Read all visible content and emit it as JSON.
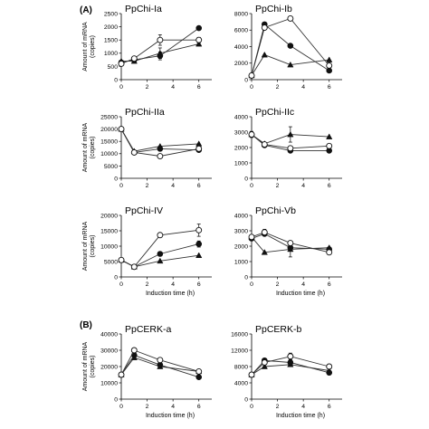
{
  "figure": {
    "sections": [
      {
        "label": "(A)"
      },
      {
        "label": "(B)"
      }
    ],
    "ylabel_line1": "Amount of mRNA",
    "ylabel_line2": "(copies)",
    "xlabel": "Induction time (h)"
  },
  "chart_data": [
    {
      "type": "line",
      "title": "PpChi-Ia",
      "x": [
        0,
        1,
        3,
        6
      ],
      "xlim": [
        0,
        7
      ],
      "xticks": [
        0,
        2,
        4,
        6
      ],
      "ylim": [
        0,
        2500
      ],
      "yticks": [
        0,
        500,
        1000,
        1500,
        2000,
        2500
      ],
      "series": [
        {
          "marker": "open-circle",
          "values": [
            600,
            800,
            1500,
            1500
          ],
          "error": [
            0,
            80,
            200,
            100
          ]
        },
        {
          "marker": "filled-circle",
          "values": [
            650,
            750,
            900,
            1950
          ],
          "error": [
            0,
            50,
            150,
            0
          ]
        },
        {
          "marker": "filled-triangle",
          "values": [
            700,
            700,
            1000,
            1350
          ],
          "error": [
            0,
            0,
            200,
            0
          ]
        }
      ]
    },
    {
      "type": "line",
      "title": "PpChi-Ib",
      "x": [
        0,
        1,
        3,
        6
      ],
      "xlim": [
        0,
        7
      ],
      "xticks": [
        0,
        2,
        4,
        6
      ],
      "ylim": [
        0,
        8000
      ],
      "yticks": [
        0,
        2000,
        4000,
        6000,
        8000
      ],
      "series": [
        {
          "marker": "open-circle",
          "values": [
            500,
            6300,
            7400,
            1700
          ],
          "error": [
            0,
            0,
            0,
            0
          ]
        },
        {
          "marker": "filled-circle",
          "values": [
            500,
            6700,
            4100,
            1100
          ],
          "error": [
            0,
            0,
            0,
            0
          ]
        },
        {
          "marker": "filled-triangle",
          "values": [
            500,
            3000,
            1800,
            2400
          ],
          "error": [
            0,
            0,
            0,
            0
          ]
        }
      ]
    },
    {
      "type": "line",
      "title": "PpChi-IIa",
      "x": [
        0,
        1,
        3,
        6
      ],
      "xlim": [
        0,
        7
      ],
      "xticks": [
        0,
        2,
        4,
        6
      ],
      "ylim": [
        0,
        25000
      ],
      "yticks": [
        0,
        5000,
        10000,
        15000,
        20000,
        25000
      ],
      "series": [
        {
          "marker": "open-circle",
          "values": [
            20000,
            10500,
            9000,
            12000
          ],
          "error": [
            0,
            0,
            0,
            0
          ]
        },
        {
          "marker": "filled-circle",
          "values": [
            20000,
            10500,
            12000,
            11500
          ],
          "error": [
            0,
            0,
            0,
            0
          ]
        },
        {
          "marker": "filled-triangle",
          "values": [
            20000,
            11000,
            13000,
            14000
          ],
          "error": [
            0,
            0,
            0,
            0
          ]
        }
      ]
    },
    {
      "type": "line",
      "title": "PpChi-IIc",
      "x": [
        0,
        1,
        3,
        6
      ],
      "xlim": [
        0,
        7
      ],
      "xticks": [
        0,
        2,
        4,
        6
      ],
      "ylim": [
        0,
        4000
      ],
      "yticks": [
        0,
        1000,
        2000,
        3000,
        4000
      ],
      "series": [
        {
          "marker": "open-circle",
          "values": [
            2850,
            2200,
            1950,
            2100
          ],
          "error": [
            200,
            0,
            0,
            0
          ]
        },
        {
          "marker": "filled-circle",
          "values": [
            2850,
            2150,
            1800,
            1800
          ],
          "error": [
            0,
            0,
            0,
            0
          ]
        },
        {
          "marker": "filled-triangle",
          "values": [
            2850,
            2250,
            2850,
            2700
          ],
          "error": [
            0,
            0,
            500,
            0
          ]
        }
      ]
    },
    {
      "type": "line",
      "title": "PpChi-IV",
      "x": [
        0,
        1,
        3,
        6
      ],
      "xlim": [
        0,
        7
      ],
      "xticks": [
        0,
        2,
        4,
        6
      ],
      "ylim": [
        0,
        20000
      ],
      "yticks": [
        0,
        5000,
        10000,
        15000,
        20000
      ],
      "series": [
        {
          "marker": "open-circle",
          "values": [
            5500,
            3300,
            13600,
            15200
          ],
          "error": [
            0,
            0,
            500,
            2000
          ]
        },
        {
          "marker": "filled-circle",
          "values": [
            5500,
            3300,
            7500,
            10700
          ],
          "error": [
            0,
            0,
            0,
            1000
          ]
        },
        {
          "marker": "filled-triangle",
          "values": [
            5500,
            3300,
            5200,
            7000
          ],
          "error": [
            0,
            0,
            0,
            0
          ]
        }
      ]
    },
    {
      "type": "line",
      "title": "PpChi-Vb",
      "x": [
        0,
        1,
        3,
        6
      ],
      "xlim": [
        0,
        7
      ],
      "xticks": [
        0,
        2,
        4,
        6
      ],
      "ylim": [
        0,
        4000
      ],
      "yticks": [
        0,
        1000,
        2000,
        3000,
        4000
      ],
      "series": [
        {
          "marker": "open-circle",
          "values": [
            2600,
            2900,
            2200,
            1600
          ],
          "error": [
            0,
            200,
            0,
            0
          ]
        },
        {
          "marker": "filled-circle",
          "values": [
            2500,
            2800,
            1900,
            1800
          ],
          "error": [
            0,
            0,
            0,
            0
          ]
        },
        {
          "marker": "filled-triangle",
          "values": [
            2600,
            1600,
            1800,
            1900
          ],
          "error": [
            0,
            0,
            500,
            0
          ]
        }
      ]
    },
    {
      "type": "line",
      "title": "PpCERK-a",
      "x": [
        0,
        1,
        3,
        6
      ],
      "xlim": [
        0,
        7
      ],
      "xticks": [
        0,
        2,
        4,
        6
      ],
      "ylim": [
        0,
        40000
      ],
      "yticks": [
        0,
        10000,
        20000,
        30000,
        40000
      ],
      "series": [
        {
          "marker": "open-circle",
          "values": [
            15000,
            30000,
            24000,
            17000
          ],
          "error": [
            0,
            0,
            0,
            0
          ]
        },
        {
          "marker": "filled-circle",
          "values": [
            15000,
            27000,
            21000,
            13500
          ],
          "error": [
            0,
            0,
            0,
            0
          ]
        },
        {
          "marker": "filled-triangle",
          "values": [
            15000,
            25500,
            20000,
            17000
          ],
          "error": [
            0,
            0,
            0,
            0
          ]
        }
      ]
    },
    {
      "type": "line",
      "title": "PpCERK-b",
      "x": [
        0,
        1,
        3,
        6
      ],
      "xlim": [
        0,
        7
      ],
      "xticks": [
        0,
        2,
        4,
        6
      ],
      "ylim": [
        0,
        16000
      ],
      "yticks": [
        0,
        4000,
        8000,
        12000,
        16000
      ],
      "series": [
        {
          "marker": "open-circle",
          "values": [
            6000,
            9000,
            10500,
            8000
          ],
          "error": [
            0,
            0,
            800,
            0
          ]
        },
        {
          "marker": "filled-circle",
          "values": [
            6000,
            9500,
            9000,
            6500
          ],
          "error": [
            0,
            0,
            0,
            0
          ]
        },
        {
          "marker": "filled-triangle",
          "values": [
            6000,
            8000,
            8500,
            7000
          ],
          "error": [
            0,
            0,
            0,
            0
          ]
        }
      ]
    }
  ]
}
